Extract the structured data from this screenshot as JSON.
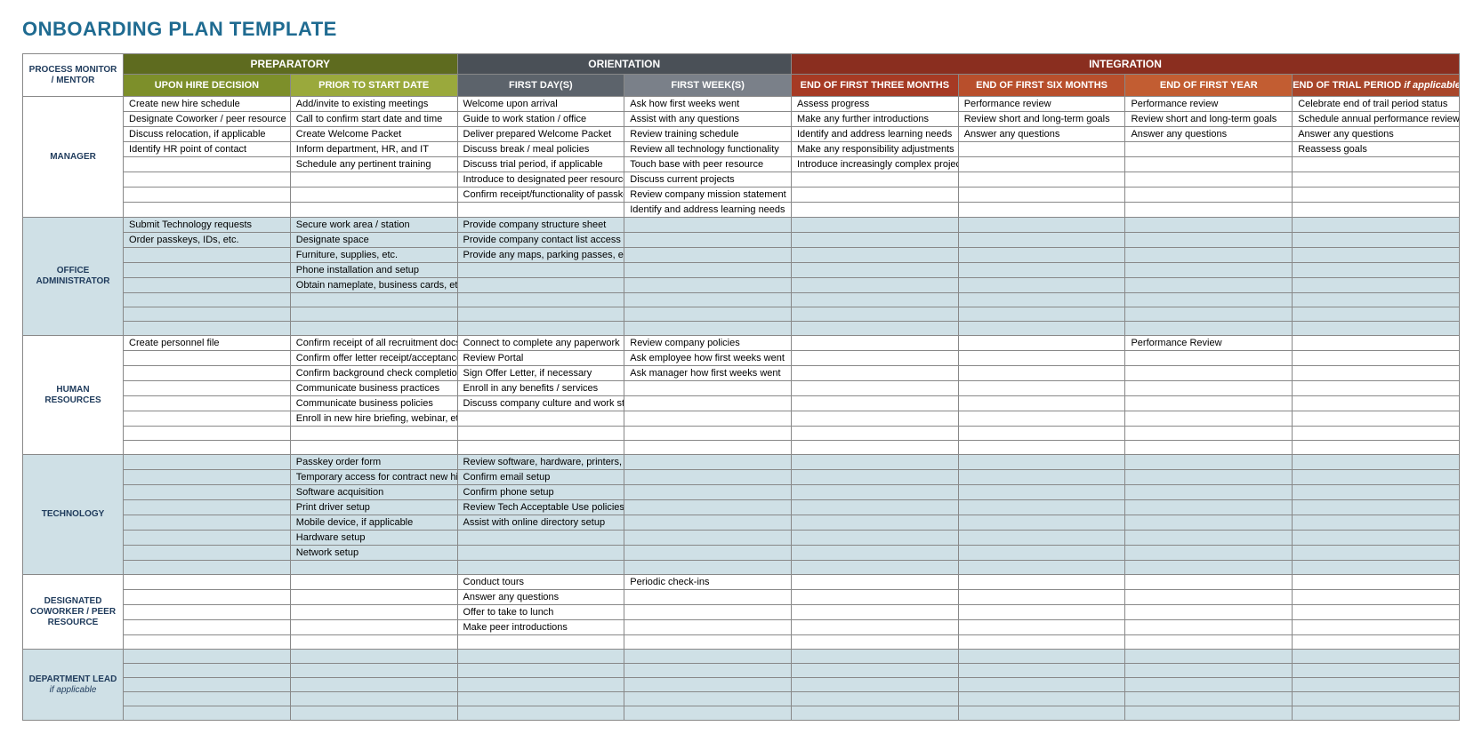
{
  "title": "ONBOARDING PLAN TEMPLATE",
  "title_color": "#1f6b91",
  "corner_label": "PROCESS MONITOR / MENTOR",
  "phases": [
    {
      "label": "PREPARATORY",
      "bg": "#5e6b1f",
      "span": 2
    },
    {
      "label": "ORIENTATION",
      "bg": "#4a5057",
      "span": 2
    },
    {
      "label": "INTEGRATION",
      "bg": "#8a2e1f",
      "span": 4
    }
  ],
  "subheaders": [
    {
      "label": "UPON HIRE DECISION",
      "bg": "#7d8f2a"
    },
    {
      "label": "PRIOR TO START DATE",
      "bg": "#9aa93c"
    },
    {
      "label": "FIRST DAY(S)",
      "bg": "#5c636b"
    },
    {
      "label": "FIRST WEEK(S)",
      "bg": "#7a8089"
    },
    {
      "label": "END OF FIRST THREE MONTHS",
      "bg": "#a63a24"
    },
    {
      "label": "END OF FIRST SIX MONTHS",
      "bg": "#b84f2c"
    },
    {
      "label": "END OF FIRST YEAR",
      "bg": "#c25d32"
    },
    {
      "label": "END OF TRIAL PERIOD if applicable",
      "bg": "#a8462a"
    }
  ],
  "column_widths_pct": [
    7.0,
    11.625,
    11.625,
    11.625,
    11.625,
    11.625,
    11.625,
    11.625,
    11.625
  ],
  "alt_row_bg": "#cfe0e6",
  "roles": [
    {
      "name": "MANAGER",
      "alt": false,
      "rows": [
        [
          "Create new hire schedule",
          "Add/invite to existing meetings",
          "Welcome upon arrival",
          "Ask how first weeks went",
          "Assess progress",
          "Performance review",
          "Performance review",
          "Celebrate end of trail period status"
        ],
        [
          "Designate Coworker / peer resource",
          "Call to confirm start date and time",
          "Guide to work station / office",
          "Assist with any questions",
          "Make any further introductions",
          "Review short and long-term goals",
          "Review short and long-term goals",
          "Schedule annual performance review"
        ],
        [
          "Discuss relocation, if applicable",
          "Create Welcome Packet",
          "Deliver prepared Welcome Packet",
          "Review training schedule",
          "Identify and address learning needs",
          "Answer any questions",
          "Answer any questions",
          "Answer any questions"
        ],
        [
          "Identify HR point of contact",
          "Inform department, HR, and IT",
          "Discuss break / meal policies",
          "Review all technology functionality",
          "Make any responsibility adjustments",
          "",
          "",
          "Reassess goals"
        ],
        [
          "",
          "Schedule any pertinent training",
          "Discuss trial period, if applicable",
          "Touch base with peer resource",
          "Introduce increasingly complex projects",
          "",
          "",
          ""
        ],
        [
          "",
          "",
          "Introduce to designated peer resource",
          "Discuss current projects",
          "",
          "",
          "",
          ""
        ],
        [
          "",
          "",
          "Confirm receipt/functionality of passkeys",
          "Review company mission statement",
          "",
          "",
          "",
          ""
        ],
        [
          "",
          "",
          "",
          "Identify and address learning needs",
          "",
          "",
          "",
          ""
        ]
      ]
    },
    {
      "name": "OFFICE ADMINISTRATOR",
      "alt": true,
      "rows": [
        [
          "Submit Technology requests",
          "Secure work area / station",
          "Provide company structure sheet",
          "",
          "",
          "",
          "",
          ""
        ],
        [
          "Order passkeys, IDs, etc.",
          "Designate space",
          "Provide company contact list access",
          "",
          "",
          "",
          "",
          ""
        ],
        [
          "",
          "Furniture, supplies, etc.",
          "Provide any maps, parking passes, etc.",
          "",
          "",
          "",
          "",
          ""
        ],
        [
          "",
          "Phone installation and setup",
          "",
          "",
          "",
          "",
          "",
          ""
        ],
        [
          "",
          "Obtain nameplate, business cards, etc.",
          "",
          "",
          "",
          "",
          "",
          ""
        ],
        [
          "",
          "",
          "",
          "",
          "",
          "",
          "",
          ""
        ],
        [
          "",
          "",
          "",
          "",
          "",
          "",
          "",
          ""
        ],
        [
          "",
          "",
          "",
          "",
          "",
          "",
          "",
          ""
        ]
      ]
    },
    {
      "name": "HUMAN RESOURCES",
      "alt": false,
      "rows": [
        [
          "Create personnel file",
          "Confirm receipt of all recruitment docs",
          "Connect to complete any paperwork",
          "Review company policies",
          "",
          "",
          "Performance Review",
          ""
        ],
        [
          "",
          "Confirm offer letter receipt/acceptance",
          "Review Portal",
          "Ask employee how first weeks went",
          "",
          "",
          "",
          ""
        ],
        [
          "",
          "Confirm background check completion",
          "Sign Offer Letter, if necessary",
          "Ask manager how first weeks went",
          "",
          "",
          "",
          ""
        ],
        [
          "",
          "Communicate business practices",
          "Enroll in any benefits / services",
          "",
          "",
          "",
          "",
          ""
        ],
        [
          "",
          "Communicate business policies",
          "Discuss company culture and work style",
          "",
          "",
          "",
          "",
          ""
        ],
        [
          "",
          "Enroll in new hire briefing, webinar, etc.",
          "",
          "",
          "",
          "",
          "",
          ""
        ],
        [
          "",
          "",
          "",
          "",
          "",
          "",
          "",
          ""
        ],
        [
          "",
          "",
          "",
          "",
          "",
          "",
          "",
          ""
        ]
      ]
    },
    {
      "name": "TECHNOLOGY",
      "alt": true,
      "rows": [
        [
          "",
          "Passkey order form",
          "Review software, hardware, printers, etc.",
          "",
          "",
          "",
          "",
          ""
        ],
        [
          "",
          "Temporary access for contract new hire",
          "Confirm email setup",
          "",
          "",
          "",
          "",
          ""
        ],
        [
          "",
          "Software acquisition",
          "Confirm phone setup",
          "",
          "",
          "",
          "",
          ""
        ],
        [
          "",
          "Print driver setup",
          "Review Tech Acceptable Use policies",
          "",
          "",
          "",
          "",
          ""
        ],
        [
          "",
          "Mobile device, if applicable",
          "Assist with online directory setup",
          "",
          "",
          "",
          "",
          ""
        ],
        [
          "",
          "Hardware setup",
          "",
          "",
          "",
          "",
          "",
          ""
        ],
        [
          "",
          "Network setup",
          "",
          "",
          "",
          "",
          "",
          ""
        ],
        [
          "",
          "",
          "",
          "",
          "",
          "",
          "",
          ""
        ]
      ]
    },
    {
      "name": "DESIGNATED COWORKER / PEER RESOURCE",
      "alt": false,
      "rows": [
        [
          "",
          "",
          "Conduct tours",
          "Periodic check-ins",
          "",
          "",
          "",
          ""
        ],
        [
          "",
          "",
          "Answer any questions",
          "",
          "",
          "",
          "",
          ""
        ],
        [
          "",
          "",
          "Offer to take to lunch",
          "",
          "",
          "",
          "",
          ""
        ],
        [
          "",
          "",
          "Make peer introductions",
          "",
          "",
          "",
          "",
          ""
        ],
        [
          "",
          "",
          "",
          "",
          "",
          "",
          "",
          ""
        ]
      ]
    },
    {
      "name": "DEPARTMENT LEAD if applicable",
      "alt": true,
      "rows": [
        [
          "",
          "",
          "",
          "",
          "",
          "",
          "",
          ""
        ],
        [
          "",
          "",
          "",
          "",
          "",
          "",
          "",
          ""
        ],
        [
          "",
          "",
          "",
          "",
          "",
          "",
          "",
          ""
        ],
        [
          "",
          "",
          "",
          "",
          "",
          "",
          "",
          ""
        ],
        [
          "",
          "",
          "",
          "",
          "",
          "",
          "",
          ""
        ]
      ]
    }
  ]
}
